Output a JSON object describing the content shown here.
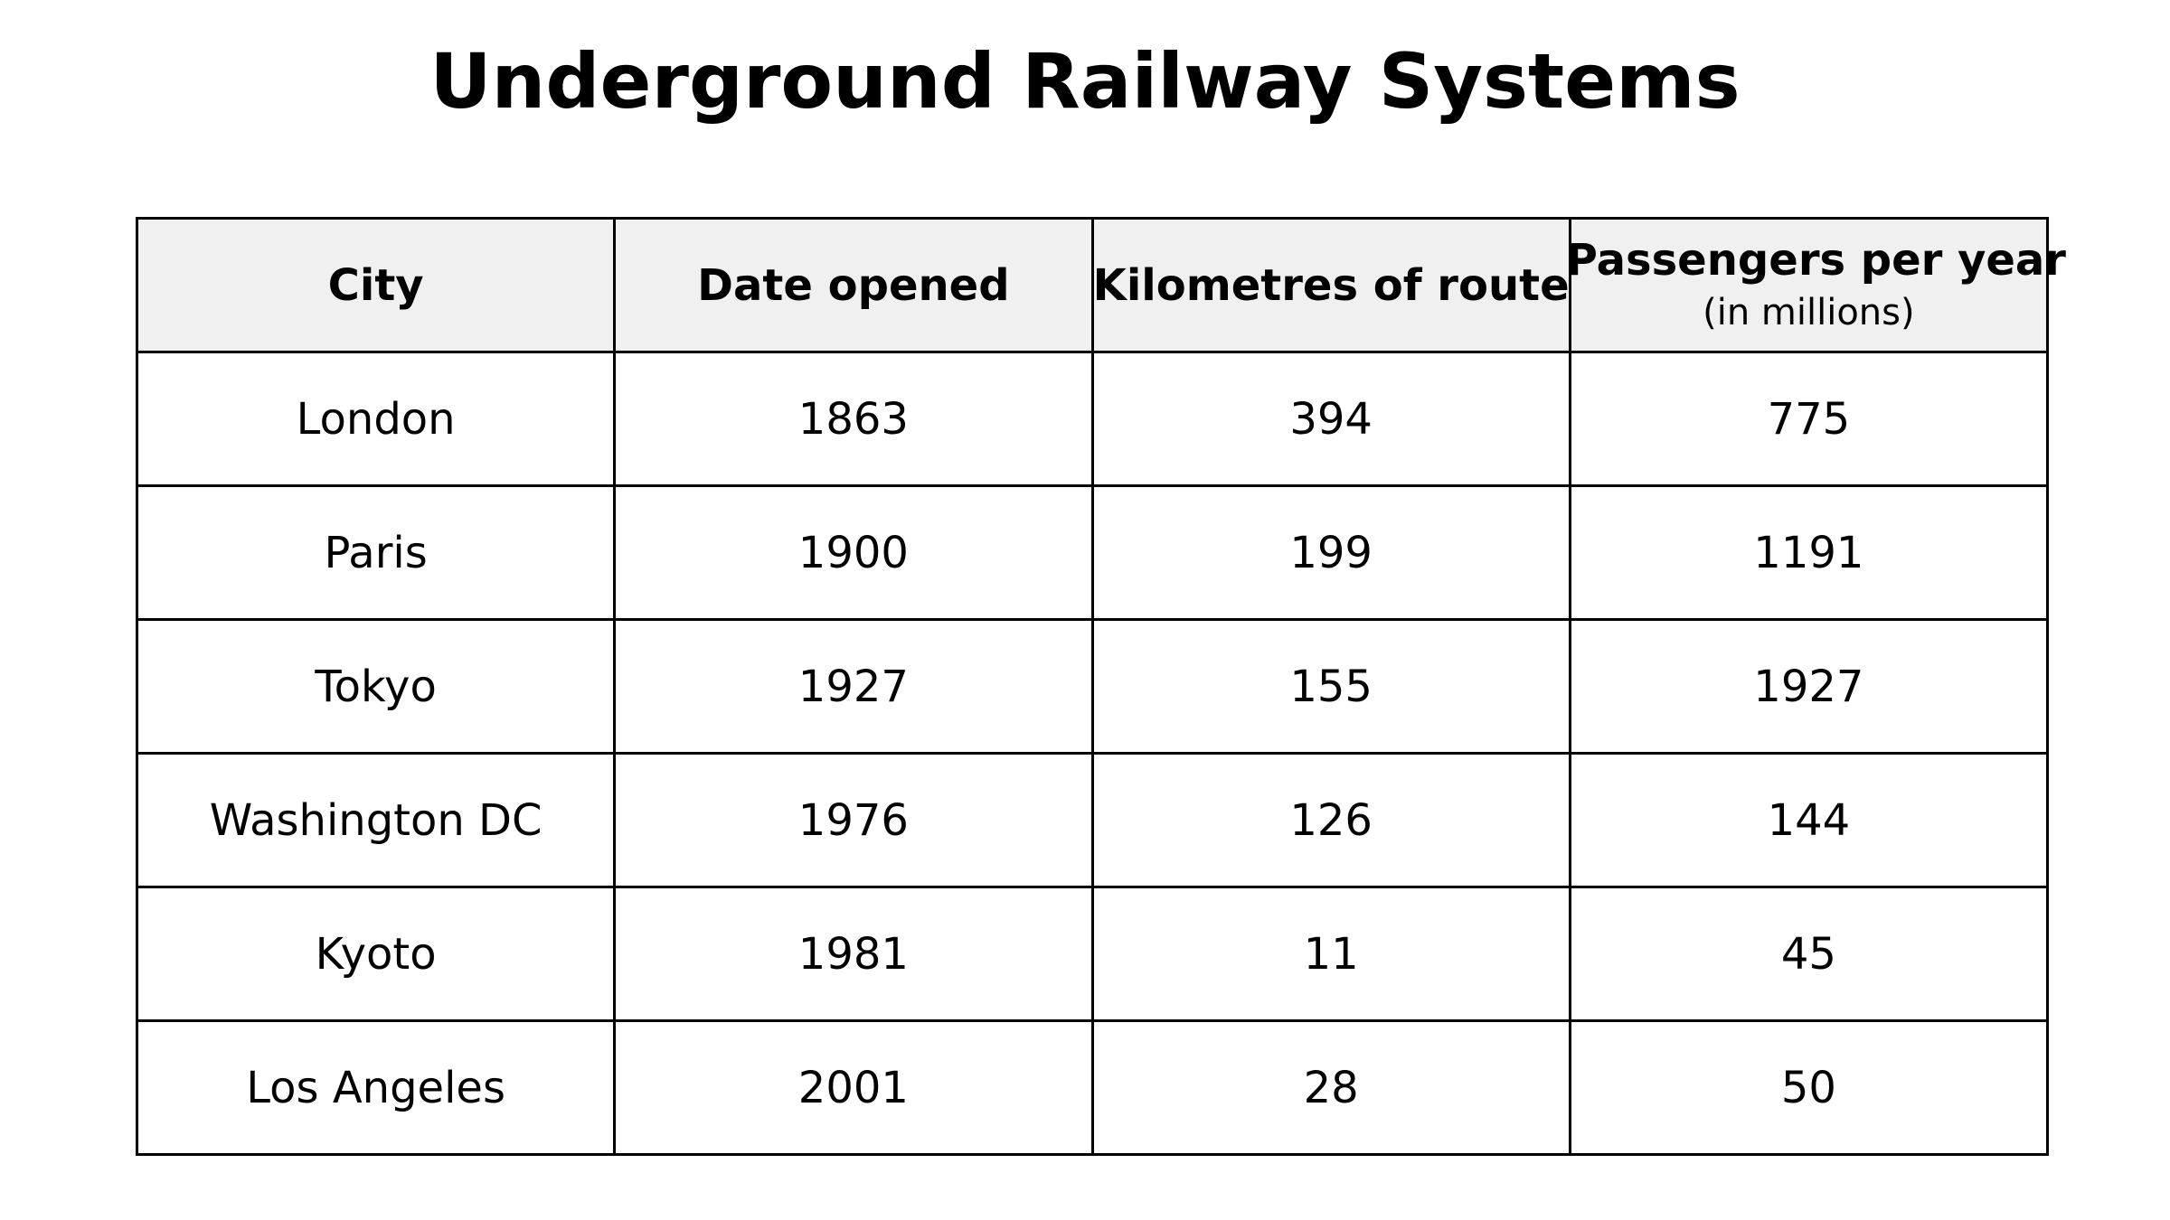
{
  "chart_data": {
    "type": "table",
    "title": "Underground Railway Systems",
    "columns": [
      {
        "label": "City",
        "sublabel": ""
      },
      {
        "label": "Date opened",
        "sublabel": ""
      },
      {
        "label": "Kilometres of route",
        "sublabel": ""
      },
      {
        "label": "Passengers per year",
        "sublabel": "(in millions)"
      }
    ],
    "rows": [
      [
        "London",
        "1863",
        "394",
        "775"
      ],
      [
        "Paris",
        "1900",
        "199",
        "1191"
      ],
      [
        "Tokyo",
        "1927",
        "155",
        "1927"
      ],
      [
        "Washington DC",
        "1976",
        "126",
        "144"
      ],
      [
        "Kyoto",
        "1981",
        "11",
        "45"
      ],
      [
        "Los Angeles",
        "2001",
        "28",
        "50"
      ]
    ],
    "colors": {
      "header_background": "#f0f0f0",
      "border": "#000000",
      "cell_background": "#ffffff"
    }
  }
}
